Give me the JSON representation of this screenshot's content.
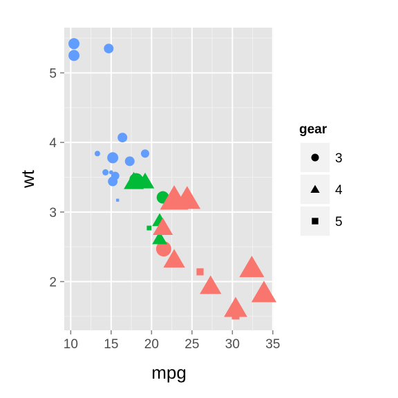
{
  "chart_data": {
    "type": "scatter",
    "title": "",
    "xlabel": "mpg",
    "ylabel": "wt",
    "xlim": [
      9.2,
      35.1
    ],
    "ylim": [
      1.3,
      5.65
    ],
    "x_ticks": [
      10,
      15,
      20,
      25,
      30,
      35
    ],
    "x_tick_labels": [
      "10",
      "15",
      "20",
      "25",
      "30",
      "35"
    ],
    "y_ticks": [
      2,
      3,
      4,
      5
    ],
    "y_tick_labels": [
      "2",
      "3",
      "4",
      "5"
    ],
    "grid": true,
    "panel_background": "#e5e5e5",
    "legend": {
      "title": "gear",
      "position": "right",
      "entries": [
        {
          "label": "3",
          "shape": "circle"
        },
        {
          "label": "4",
          "shape": "triangle"
        },
        {
          "label": "5",
          "shape": "square"
        }
      ]
    },
    "colors": {
      "red": "#f8766d",
      "green": "#00ba38",
      "blue": "#619cff"
    },
    "points": [
      {
        "x": 10.4,
        "y": 5.42,
        "gear": 3,
        "color": "blue",
        "size": 8
      },
      {
        "x": 10.4,
        "y": 5.25,
        "gear": 3,
        "color": "blue",
        "size": 8
      },
      {
        "x": 14.7,
        "y": 5.35,
        "gear": 3,
        "color": "blue",
        "size": 7
      },
      {
        "x": 16.4,
        "y": 4.07,
        "gear": 3,
        "color": "blue",
        "size": 7
      },
      {
        "x": 13.3,
        "y": 3.84,
        "gear": 3,
        "color": "blue",
        "size": 4
      },
      {
        "x": 15.2,
        "y": 3.78,
        "gear": 3,
        "color": "blue",
        "size": 8
      },
      {
        "x": 17.3,
        "y": 3.73,
        "gear": 3,
        "color": "blue",
        "size": 7
      },
      {
        "x": 19.2,
        "y": 3.84,
        "gear": 3,
        "color": "blue",
        "size": 6
      },
      {
        "x": 14.3,
        "y": 3.57,
        "gear": 3,
        "color": "blue",
        "size": 4.5
      },
      {
        "x": 15.0,
        "y": 3.57,
        "gear": 3,
        "color": "blue",
        "size": 3
      },
      {
        "x": 15.5,
        "y": 3.52,
        "gear": 3,
        "color": "blue",
        "size": 6
      },
      {
        "x": 15.2,
        "y": 3.44,
        "gear": 3,
        "color": "blue",
        "size": 7
      },
      {
        "x": 18.1,
        "y": 3.46,
        "gear": 3,
        "color": "green",
        "size": 10
      },
      {
        "x": 21.4,
        "y": 3.21,
        "gear": 3,
        "color": "green",
        "size": 9
      },
      {
        "x": 21.5,
        "y": 2.47,
        "gear": 3,
        "color": "red",
        "size": 11
      },
      {
        "x": 17.8,
        "y": 3.44,
        "gear": 4,
        "color": "green",
        "size": 12
      },
      {
        "x": 19.2,
        "y": 3.44,
        "gear": 4,
        "color": "green",
        "size": 11
      },
      {
        "x": 21.0,
        "y": 2.88,
        "gear": 4,
        "color": "green",
        "size": 9
      },
      {
        "x": 21.0,
        "y": 2.62,
        "gear": 4,
        "color": "green",
        "size": 9
      },
      {
        "x": 21.4,
        "y": 2.78,
        "gear": 4,
        "color": "red",
        "size": 12
      },
      {
        "x": 22.8,
        "y": 2.32,
        "gear": 4,
        "color": "red",
        "size": 13
      },
      {
        "x": 22.8,
        "y": 3.19,
        "gear": 4,
        "color": "red",
        "size": 17
      },
      {
        "x": 24.4,
        "y": 3.19,
        "gear": 4,
        "color": "red",
        "size": 16
      },
      {
        "x": 27.3,
        "y": 1.94,
        "gear": 4,
        "color": "red",
        "size": 13
      },
      {
        "x": 30.4,
        "y": 1.62,
        "gear": 4,
        "color": "red",
        "size": 14
      },
      {
        "x": 32.4,
        "y": 2.2,
        "gear": 4,
        "color": "red",
        "size": 15
      },
      {
        "x": 33.9,
        "y": 1.84,
        "gear": 4,
        "color": "red",
        "size": 15
      },
      {
        "x": 15.8,
        "y": 3.17,
        "gear": 5,
        "color": "blue",
        "size": 2.5
      },
      {
        "x": 19.7,
        "y": 2.77,
        "gear": 5,
        "color": "green",
        "size": 4
      },
      {
        "x": 26.0,
        "y": 2.14,
        "gear": 5,
        "color": "red",
        "size": 6
      },
      {
        "x": 30.4,
        "y": 1.51,
        "gear": 5,
        "color": "red",
        "size": 6.5
      }
    ]
  }
}
